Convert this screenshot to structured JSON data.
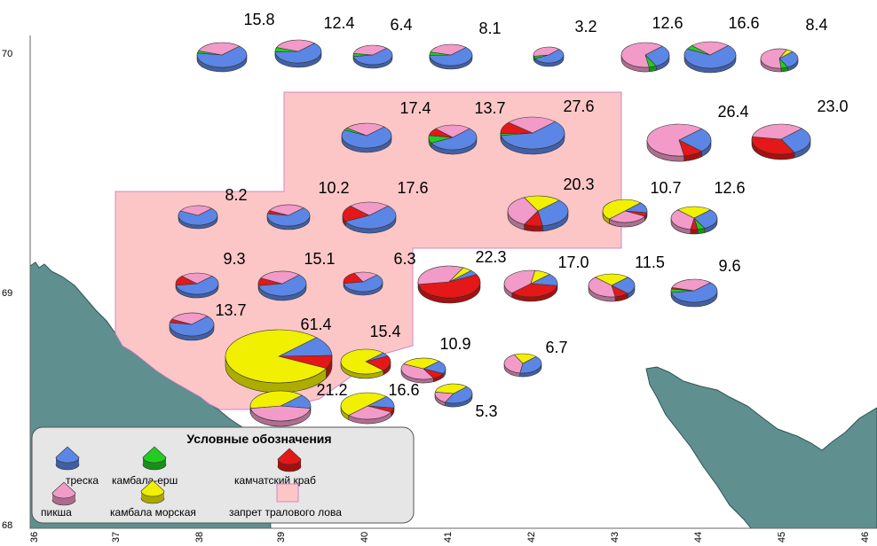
{
  "map": {
    "lat_labels": [
      "70",
      "69",
      "68"
    ],
    "lon_labels": [
      "36",
      "37",
      "38",
      "39",
      "40",
      "41",
      "42",
      "43",
      "44",
      "45",
      "46"
    ],
    "species": [
      {
        "key": "cod",
        "label": "треска",
        "color": "#5b86e5"
      },
      {
        "key": "dab",
        "label": "камбала-ерш",
        "color": "#22cc22"
      },
      {
        "key": "crab",
        "label": "камчатский краб",
        "color": "#e41818"
      },
      {
        "key": "haddock",
        "label": "пикша",
        "color": "#f29ac8"
      },
      {
        "key": "plaice",
        "label": "камбала морская",
        "color": "#f0f000"
      }
    ],
    "closed_area": {
      "label": "запрет тралового лова",
      "color": "#fcc6c6"
    },
    "stations": [
      {
        "value": "15.8",
        "shares": {
          "cod": 0.65,
          "dab": 0.03,
          "crab": 0.0,
          "haddock": 0.32,
          "plaice": 0.0
        }
      },
      {
        "value": "12.4",
        "shares": {
          "cod": 0.62,
          "dab": 0.06,
          "crab": 0.0,
          "haddock": 0.32,
          "plaice": 0.0
        }
      },
      {
        "value": "6.4",
        "shares": {
          "cod": 0.6,
          "dab": 0.05,
          "crab": 0.0,
          "haddock": 0.35,
          "plaice": 0.0
        }
      },
      {
        "value": "8.1",
        "shares": {
          "cod": 0.62,
          "dab": 0.05,
          "crab": 0.0,
          "haddock": 0.33,
          "plaice": 0.0
        }
      },
      {
        "value": "3.2",
        "shares": {
          "cod": 0.55,
          "dab": 0.05,
          "crab": 0.0,
          "haddock": 0.4,
          "plaice": 0.0
        }
      },
      {
        "value": "12.6",
        "shares": {
          "cod": 0.3,
          "dab": 0.05,
          "crab": 0.0,
          "haddock": 0.65,
          "plaice": 0.0
        }
      },
      {
        "value": "16.6",
        "shares": {
          "cod": 0.7,
          "dab": 0.05,
          "crab": 0.0,
          "haddock": 0.25,
          "plaice": 0.0
        }
      },
      {
        "value": "8.4",
        "shares": {
          "cod": 0.3,
          "dab": 0.06,
          "crab": 0.0,
          "haddock": 0.58,
          "plaice": 0.06
        }
      },
      {
        "value": "17.4",
        "shares": {
          "cod": 0.7,
          "dab": 0.03,
          "crab": 0.0,
          "haddock": 0.27,
          "plaice": 0.0
        }
      },
      {
        "value": "13.7",
        "shares": {
          "cod": 0.55,
          "dab": 0.1,
          "crab": 0.1,
          "haddock": 0.25,
          "plaice": 0.0
        }
      },
      {
        "value": "27.6",
        "shares": {
          "cod": 0.6,
          "dab": 0.02,
          "crab": 0.12,
          "haddock": 0.26,
          "plaice": 0.0
        }
      },
      {
        "value": "26.4",
        "shares": {
          "cod": 0.25,
          "dab": 0.0,
          "crab": 0.1,
          "haddock": 0.65,
          "plaice": 0.0
        }
      },
      {
        "value": "23.0",
        "shares": {
          "cod": 0.3,
          "dab": 0.0,
          "crab": 0.35,
          "haddock": 0.35,
          "plaice": 0.0
        }
      },
      {
        "value": "8.2",
        "shares": {
          "cod": 0.7,
          "dab": 0.0,
          "crab": 0.0,
          "haddock": 0.3,
          "plaice": 0.0
        }
      },
      {
        "value": "10.2",
        "shares": {
          "cod": 0.65,
          "dab": 0.0,
          "crab": 0.05,
          "haddock": 0.3,
          "plaice": 0.0
        }
      },
      {
        "value": "17.6",
        "shares": {
          "cod": 0.55,
          "dab": 0.0,
          "crab": 0.2,
          "haddock": 0.25,
          "plaice": 0.0
        }
      },
      {
        "value": "20.3",
        "shares": {
          "cod": 0.35,
          "dab": 0.0,
          "crab": 0.1,
          "haddock": 0.35,
          "plaice": 0.2
        }
      },
      {
        "value": "10.7",
        "shares": {
          "cod": 0.15,
          "dab": 0.0,
          "crab": 0.05,
          "haddock": 0.3,
          "plaice": 0.5
        }
      },
      {
        "value": "12.6",
        "shares": {
          "cod": 0.3,
          "dab": 0.05,
          "crab": 0.05,
          "haddock": 0.35,
          "plaice": 0.25
        }
      },
      {
        "value": "9.3",
        "shares": {
          "cod": 0.6,
          "dab": 0.0,
          "crab": 0.15,
          "haddock": 0.25,
          "plaice": 0.0
        }
      },
      {
        "value": "15.1",
        "shares": {
          "cod": 0.6,
          "dab": 0.0,
          "crab": 0.1,
          "haddock": 0.3,
          "plaice": 0.0
        }
      },
      {
        "value": "6.3",
        "shares": {
          "cod": 0.6,
          "dab": 0.0,
          "crab": 0.2,
          "haddock": 0.2,
          "plaice": 0.0
        }
      },
      {
        "value": "22.3",
        "shares": {
          "cod": 0.05,
          "dab": 0.0,
          "crab": 0.55,
          "haddock": 0.35,
          "plaice": 0.05
        }
      },
      {
        "value": "17.0",
        "shares": {
          "cod": 0.15,
          "dab": 0.0,
          "crab": 0.35,
          "haddock": 0.4,
          "plaice": 0.1
        }
      },
      {
        "value": "11.5",
        "shares": {
          "cod": 0.25,
          "dab": 0.0,
          "crab": 0.1,
          "haddock": 0.4,
          "plaice": 0.25
        }
      },
      {
        "value": "9.6",
        "shares": {
          "cod": 0.6,
          "dab": 0.05,
          "crab": 0.02,
          "haddock": 0.33,
          "plaice": 0.0
        }
      },
      {
        "value": "13.7",
        "shares": {
          "cod": 0.65,
          "dab": 0.0,
          "crab": 0.05,
          "haddock": 0.3,
          "plaice": 0.0
        }
      },
      {
        "value": "61.4",
        "shares": {
          "cod": 0.12,
          "dab": 0.0,
          "crab": 0.08,
          "haddock": 0.0,
          "plaice": 0.8
        }
      },
      {
        "value": "15.4",
        "shares": {
          "cod": 0.05,
          "dab": 0.0,
          "crab": 0.2,
          "haddock": 0.0,
          "plaice": 0.75
        }
      },
      {
        "value": "10.9",
        "shares": {
          "cod": 0.2,
          "dab": 0.0,
          "crab": 0.1,
          "haddock": 0.4,
          "plaice": 0.3
        }
      },
      {
        "value": "6.7",
        "shares": {
          "cod": 0.4,
          "dab": 0.0,
          "crab": 0.0,
          "haddock": 0.4,
          "plaice": 0.2
        }
      },
      {
        "value": "21.2",
        "shares": {
          "cod": 0.15,
          "dab": 0.0,
          "crab": 0.0,
          "haddock": 0.45,
          "plaice": 0.4
        }
      },
      {
        "value": "16.6",
        "shares": {
          "cod": 0.15,
          "dab": 0.0,
          "crab": 0.05,
          "haddock": 0.3,
          "plaice": 0.5
        }
      },
      {
        "value": "5.3",
        "shares": {
          "cod": 0.45,
          "dab": 0.0,
          "crab": 0.0,
          "haddock": 0.2,
          "plaice": 0.35
        }
      }
    ]
  },
  "legend": {
    "title": "Условные обозначения"
  }
}
